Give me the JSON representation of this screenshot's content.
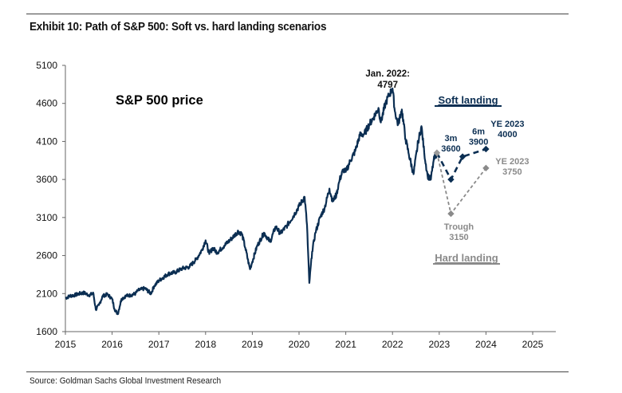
{
  "exhibit": {
    "title": "Exhibit 10: Path of S&P 500: Soft vs. hard landing scenarios",
    "source": "Source: Goldman Sachs Global Investment Research"
  },
  "chart_data": {
    "type": "line",
    "title": "S&P 500 price",
    "xlabel": "",
    "ylabel": "",
    "xlim": [
      2015,
      2025.15
    ],
    "ylim": [
      1600,
      5100
    ],
    "x_ticks": [
      "2015",
      "2016",
      "2017",
      "2018",
      "2019",
      "2020",
      "2021",
      "2022",
      "2023",
      "2024",
      "2025"
    ],
    "y_ticks": [
      "1600",
      "2100",
      "2600",
      "3100",
      "3600",
      "4100",
      "4600",
      "5100"
    ],
    "historical": {
      "name": "S&P 500 price",
      "color": "#0b2e52",
      "points": [
        [
          2015.0,
          2040
        ],
        [
          2015.1,
          2070
        ],
        [
          2015.2,
          2080
        ],
        [
          2015.3,
          2100
        ],
        [
          2015.4,
          2110
        ],
        [
          2015.5,
          2080
        ],
        [
          2015.6,
          2100
        ],
        [
          2015.65,
          1890
        ],
        [
          2015.72,
          1950
        ],
        [
          2015.8,
          2070
        ],
        [
          2015.9,
          2090
        ],
        [
          2016.0,
          2030
        ],
        [
          2016.05,
          1900
        ],
        [
          2016.12,
          1830
        ],
        [
          2016.2,
          2030
        ],
        [
          2016.3,
          2070
        ],
        [
          2016.4,
          2080
        ],
        [
          2016.5,
          2100
        ],
        [
          2016.55,
          2140
        ],
        [
          2016.7,
          2170
        ],
        [
          2016.83,
          2100
        ],
        [
          2016.9,
          2200
        ],
        [
          2017.0,
          2270
        ],
        [
          2017.2,
          2360
        ],
        [
          2017.35,
          2380
        ],
        [
          2017.5,
          2430
        ],
        [
          2017.65,
          2450
        ],
        [
          2017.8,
          2550
        ],
        [
          2017.92,
          2670
        ],
        [
          2018.0,
          2800
        ],
        [
          2018.08,
          2620
        ],
        [
          2018.15,
          2700
        ],
        [
          2018.25,
          2640
        ],
        [
          2018.4,
          2730
        ],
        [
          2018.55,
          2820
        ],
        [
          2018.7,
          2920
        ],
        [
          2018.78,
          2880
        ],
        [
          2018.85,
          2700
        ],
        [
          2018.95,
          2420
        ],
        [
          2019.0,
          2520
        ],
        [
          2019.1,
          2720
        ],
        [
          2019.25,
          2900
        ],
        [
          2019.38,
          2780
        ],
        [
          2019.5,
          2980
        ],
        [
          2019.6,
          2890
        ],
        [
          2019.75,
          3000
        ],
        [
          2019.9,
          3140
        ],
        [
          2020.0,
          3250
        ],
        [
          2020.12,
          3370
        ],
        [
          2020.17,
          3000
        ],
        [
          2020.22,
          2240
        ],
        [
          2020.28,
          2650
        ],
        [
          2020.35,
          2900
        ],
        [
          2020.45,
          3100
        ],
        [
          2020.55,
          3230
        ],
        [
          2020.65,
          3480
        ],
        [
          2020.72,
          3310
        ],
        [
          2020.8,
          3400
        ],
        [
          2020.87,
          3600
        ],
        [
          2020.95,
          3730
        ],
        [
          2021.0,
          3700
        ],
        [
          2021.1,
          3850
        ],
        [
          2021.2,
          3970
        ],
        [
          2021.3,
          4180
        ],
        [
          2021.4,
          4200
        ],
        [
          2021.5,
          4320
        ],
        [
          2021.6,
          4420
        ],
        [
          2021.7,
          4540
        ],
        [
          2021.75,
          4350
        ],
        [
          2021.85,
          4600
        ],
        [
          2021.92,
          4700
        ],
        [
          2022.0,
          4797
        ],
        [
          2022.05,
          4500
        ],
        [
          2022.12,
          4320
        ],
        [
          2022.2,
          4520
        ],
        [
          2022.28,
          4130
        ],
        [
          2022.35,
          3930
        ],
        [
          2022.45,
          3670
        ],
        [
          2022.55,
          4100
        ],
        [
          2022.62,
          4300
        ],
        [
          2022.68,
          3950
        ],
        [
          2022.75,
          3650
        ],
        [
          2022.82,
          3600
        ],
        [
          2022.88,
          3850
        ],
        [
          2022.95,
          3950
        ]
      ]
    },
    "scenarios": [
      {
        "name": "Soft landing",
        "color": "#0b2e52",
        "points": [
          [
            2022.95,
            3950
          ],
          [
            2023.25,
            3600
          ],
          [
            2023.5,
            3900
          ],
          [
            2024.0,
            4000
          ]
        ],
        "labels": [
          {
            "x": 2023.25,
            "y": 3600,
            "lines": [
              "3m",
              "3600"
            ]
          },
          {
            "x": 2023.5,
            "y": 3900,
            "lines": [
              "6m",
              "3900"
            ]
          },
          {
            "x": 2024.0,
            "y": 4000,
            "lines": [
              "YE 2023",
              "4000"
            ]
          }
        ]
      },
      {
        "name": "Hard landing",
        "color": "#8a8a8a",
        "points": [
          [
            2022.95,
            3950
          ],
          [
            2023.25,
            3150
          ],
          [
            2024.0,
            3750
          ]
        ],
        "labels": [
          {
            "x": 2023.25,
            "y": 3150,
            "lines": [
              "Trough",
              "3150"
            ]
          },
          {
            "x": 2024.0,
            "y": 3750,
            "lines": [
              "YE 2023",
              "3750"
            ]
          }
        ]
      }
    ],
    "peak_annotation": {
      "x": 2022.0,
      "y": 4797,
      "lines": [
        "Jan. 2022:",
        "4797"
      ]
    }
  }
}
